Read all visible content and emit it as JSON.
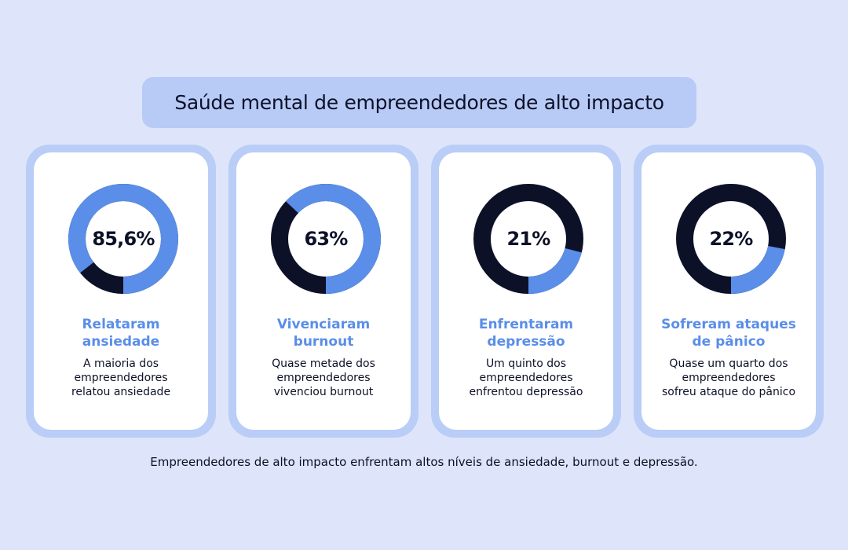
{
  "title": "Saúde mental de empreendedores de alto impacto",
  "footer": "Empreendedores de alto impacto enfrentam altos níveis de ansiedade, burnout e depressão.",
  "colors": {
    "highlight": "#5a8ee8",
    "remainder": "#0d1128",
    "card_border": "#b9cdf7",
    "background": "#dee5fb"
  },
  "cards": [
    {
      "value_label": "85,6%",
      "heading_line1": "Relataram",
      "heading_line2": "ansiedade",
      "desc_line1": "A maioria dos",
      "desc_line2": "empreendedores",
      "desc_line3": "relatou ansiedade"
    },
    {
      "value_label": "63%",
      "heading_line1": "Vivenciaram",
      "heading_line2": "burnout",
      "desc_line1": "Quase metade dos",
      "desc_line2": "empreendedores",
      "desc_line3": "vivenciou burnout"
    },
    {
      "value_label": "21%",
      "heading_line1": "Enfrentaram",
      "heading_line2": "depressão",
      "desc_line1": "Um quinto dos",
      "desc_line2": "empreendedores",
      "desc_line3": "enfrentou depressão"
    },
    {
      "value_label": "22%",
      "heading_line1": "Sofreram ataques",
      "heading_line2": "de pânico",
      "desc_line1": "Quase um quarto dos",
      "desc_line2": "empreendedores",
      "desc_line3": "sofreu ataque do pânico"
    }
  ],
  "chart_data": [
    {
      "type": "pie",
      "values": [
        85.6,
        14.4
      ]
    },
    {
      "type": "pie",
      "values": [
        63,
        37
      ]
    },
    {
      "type": "pie",
      "values": [
        21,
        79
      ]
    },
    {
      "type": "pie",
      "values": [
        22,
        78
      ]
    }
  ]
}
